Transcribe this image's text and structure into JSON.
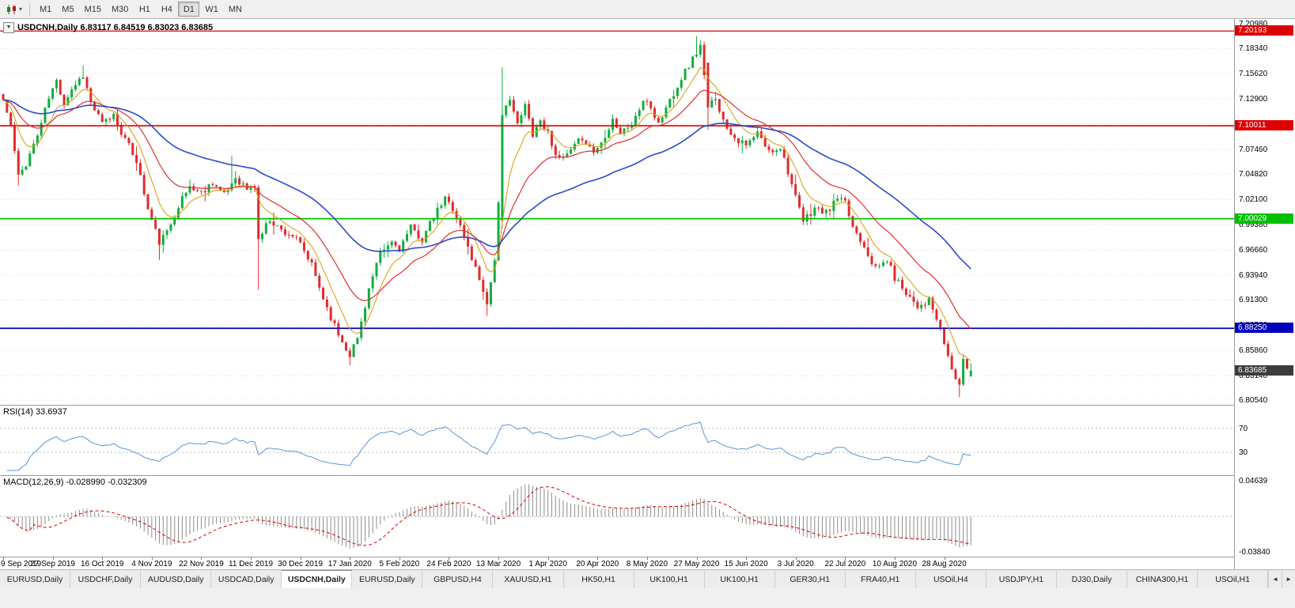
{
  "toolbar": {
    "chart_type_button": {
      "icon": "candlestick-chart-icon",
      "caret": "▾"
    },
    "timeframes": [
      "M1",
      "M5",
      "M15",
      "M30",
      "H1",
      "H4",
      "D1",
      "W1",
      "MN"
    ],
    "active_timeframe": "D1"
  },
  "chart": {
    "collapse_arrow": "▼",
    "symbol": "USDCNH,Daily",
    "open": "6.83117",
    "high": "6.84519",
    "low": "6.83023",
    "close": "6.83685",
    "title_text": "USDCNH,Daily 6.83117 6.84519 6.83023 6.83685"
  },
  "price_axis": {
    "ticks": [
      "7.20980",
      "7.18340",
      "7.15620",
      "7.12900",
      "7.10180",
      "7.07460",
      "7.04820",
      "7.02100",
      "6.99380",
      "6.96660",
      "6.93940",
      "6.91300",
      "6.88580",
      "6.85860",
      "6.83140",
      "6.80540"
    ]
  },
  "rsi_pane": {
    "label": "RSI(14) 33.6937",
    "indicator": "RSI",
    "period": 14,
    "value": "33.6937",
    "levels": [
      "70",
      "30"
    ]
  },
  "macd_pane": {
    "label": "MACD(12,26,9) -0.028990 -0.032309",
    "value_main": "-0.028990",
    "value_signal": "-0.032309",
    "axis_top": "0.04639",
    "axis_bottom": "-0.03840"
  },
  "date_axis": {
    "labels": [
      "9 Sep 2019",
      "27 Sep 2019",
      "16 Oct 2019",
      "4 Nov 2019",
      "22 Nov 2019",
      "11 Dec 2019",
      "30 Dec 2019",
      "17 Jan 2020",
      "5 Feb 2020",
      "24 Feb 2020",
      "13 Mar 2020",
      "1 Apr 2020",
      "20 Apr 2020",
      "8 May 2020",
      "27 May 2020",
      "15 Jun 2020",
      "3 Jul 2020",
      "22 Jul 2020",
      "10 Aug 2020",
      "28 Aug 2020"
    ]
  },
  "tabbar": {
    "tabs": [
      "EURUSD,Daily",
      "USDCHF,Daily",
      "AUDUSD,Daily",
      "USDCAD,Daily",
      "USDCNH,Daily",
      "EURUSD,Daily",
      "GBPUSD,H4",
      "XAUUSD,H1",
      "HK50,H1",
      "UK100,H1",
      "UK100,H1",
      "GER30,H1",
      "FRA40,H1",
      "USOil,H4",
      "USDJPY,H1",
      "DJ30,Daily",
      "CHINA300,H1",
      "USOil,H1"
    ],
    "active_index": 4,
    "scroll_left": "◄",
    "scroll_right": "►"
  },
  "chart_data": {
    "type": "candlestick",
    "symbol": "USDCNH",
    "timeframe": "D1",
    "count": 255,
    "price_min": 6.8054,
    "price_max": 7.2098,
    "spacing_px": 4.816,
    "seed": 11,
    "noise": {
      "close": 0.004,
      "wick": 0.0045
    },
    "anchors": [
      [
        0,
        7.128
      ],
      [
        2,
        7.1
      ],
      [
        4,
        7.045
      ],
      [
        6,
        7.06
      ],
      [
        9,
        7.09
      ],
      [
        12,
        7.13
      ],
      [
        14,
        7.148
      ],
      [
        16,
        7.125
      ],
      [
        18,
        7.14
      ],
      [
        21,
        7.155
      ],
      [
        23,
        7.125
      ],
      [
        26,
        7.102
      ],
      [
        29,
        7.112
      ],
      [
        32,
        7.085
      ],
      [
        35,
        7.063
      ],
      [
        38,
        7.01
      ],
      [
        41,
        6.975
      ],
      [
        43,
        6.985
      ],
      [
        46,
        7.015
      ],
      [
        49,
        7.035
      ],
      [
        52,
        7.028
      ],
      [
        55,
        7.04
      ],
      [
        58,
        7.025
      ],
      [
        61,
        7.045
      ],
      [
        64,
        7.032
      ],
      [
        66,
        7.035
      ],
      [
        67,
        6.978
      ],
      [
        70,
        7.0
      ],
      [
        73,
        6.988
      ],
      [
        76,
        6.982
      ],
      [
        78,
        6.972
      ],
      [
        81,
        6.95
      ],
      [
        84,
        6.915
      ],
      [
        87,
        6.885
      ],
      [
        89,
        6.868
      ],
      [
        91,
        6.855
      ],
      [
        93,
        6.872
      ],
      [
        96,
        6.925
      ],
      [
        99,
        6.962
      ],
      [
        102,
        6.975
      ],
      [
        104,
        6.968
      ],
      [
        107,
        6.99
      ],
      [
        110,
        6.978
      ],
      [
        113,
        7.002
      ],
      [
        116,
        7.022
      ],
      [
        118,
        7.012
      ],
      [
        120,
        6.992
      ],
      [
        123,
        6.958
      ],
      [
        126,
        6.925
      ],
      [
        127,
        6.908
      ],
      [
        129,
        6.958
      ],
      [
        130,
        7.015
      ],
      [
        131,
        7.108
      ],
      [
        133,
        7.132
      ],
      [
        135,
        7.1
      ],
      [
        137,
        7.122
      ],
      [
        139,
        7.092
      ],
      [
        141,
        7.106
      ],
      [
        143,
        7.092
      ],
      [
        146,
        7.062
      ],
      [
        149,
        7.072
      ],
      [
        152,
        7.088
      ],
      [
        155,
        7.072
      ],
      [
        157,
        7.082
      ],
      [
        160,
        7.108
      ],
      [
        162,
        7.092
      ],
      [
        165,
        7.102
      ],
      [
        167,
        7.118
      ],
      [
        169,
        7.128
      ],
      [
        172,
        7.102
      ],
      [
        175,
        7.128
      ],
      [
        178,
        7.152
      ],
      [
        181,
        7.172
      ],
      [
        183,
        7.186
      ],
      [
        185,
        7.118
      ],
      [
        187,
        7.132
      ],
      [
        189,
        7.105
      ],
      [
        192,
        7.088
      ],
      [
        195,
        7.078
      ],
      [
        198,
        7.092
      ],
      [
        201,
        7.072
      ],
      [
        204,
        7.078
      ],
      [
        206,
        7.052
      ],
      [
        208,
        7.022
      ],
      [
        210,
        6.997
      ],
      [
        213,
        7.012
      ],
      [
        216,
        7.006
      ],
      [
        219,
        7.022
      ],
      [
        221,
        7.016
      ],
      [
        223,
        6.992
      ],
      [
        226,
        6.972
      ],
      [
        229,
        6.946
      ],
      [
        232,
        6.956
      ],
      [
        234,
        6.937
      ],
      [
        237,
        6.922
      ],
      [
        240,
        6.907
      ],
      [
        243,
        6.912
      ],
      [
        245,
        6.892
      ],
      [
        247,
        6.867
      ],
      [
        249,
        6.838
      ],
      [
        251,
        6.822
      ],
      [
        252,
        6.846
      ],
      [
        253,
        6.841
      ],
      [
        254,
        6.83685
      ]
    ],
    "overrides": [
      {
        "i": 4,
        "l": 7.036
      },
      {
        "i": 21,
        "h": 7.165
      },
      {
        "i": 41,
        "l": 6.956
      },
      {
        "i": 60,
        "h": 7.068
      },
      {
        "i": 67,
        "o": 7.034,
        "l": 6.924
      },
      {
        "i": 91,
        "l": 6.8425
      },
      {
        "i": 127,
        "l": 6.896
      },
      {
        "i": 131,
        "o": 6.998,
        "l": 6.99,
        "h": 7.163
      },
      {
        "i": 182,
        "h": 7.1965
      },
      {
        "i": 183,
        "h": 7.192
      },
      {
        "i": 185,
        "o": 7.168,
        "l": 7.096
      },
      {
        "i": 251,
        "l": 6.8085
      },
      {
        "i": 254,
        "o": 6.83117,
        "h": 6.84519,
        "l": 6.83023,
        "c": 6.83685
      }
    ],
    "hlines": [
      {
        "price": 7.20193,
        "label": "7.20193",
        "color": "#dd0000",
        "width": 1.2
      },
      {
        "price": 7.10011,
        "label": "7.10011",
        "color": "#dd0000",
        "width": 1.6
      },
      {
        "price": 7.00029,
        "label": "7.00029",
        "color": "#00c000",
        "width": 1.8
      },
      {
        "price": 6.8825,
        "label": "6.88250",
        "color": "#0000bb",
        "width": 1.8
      }
    ],
    "current_price": {
      "price": 6.83685,
      "label": "6.83685",
      "bg": "#3c3c3c"
    },
    "moving_averages": [
      {
        "period": 8,
        "color": "#d9a514",
        "width": 1.1,
        "name": "fast-ma"
      },
      {
        "period": 21,
        "color": "#e03030",
        "width": 1.2,
        "name": "mid-ma"
      },
      {
        "period": 55,
        "color": "#2b4bcc",
        "width": 1.6,
        "name": "slow-ma"
      }
    ],
    "rsi": {
      "period": 14,
      "color": "#5a96d2",
      "levels": [
        70,
        30
      ]
    },
    "macd": {
      "fast": 12,
      "slow": 26,
      "signal": 9,
      "bar_color": "#8c8c8c",
      "signal_color": "#dd0000"
    },
    "colors": {
      "up": "#0fae3f",
      "down": "#e22b2b",
      "grid": "#dcdcdc",
      "background": "#ffffff",
      "text": "#000000"
    }
  }
}
